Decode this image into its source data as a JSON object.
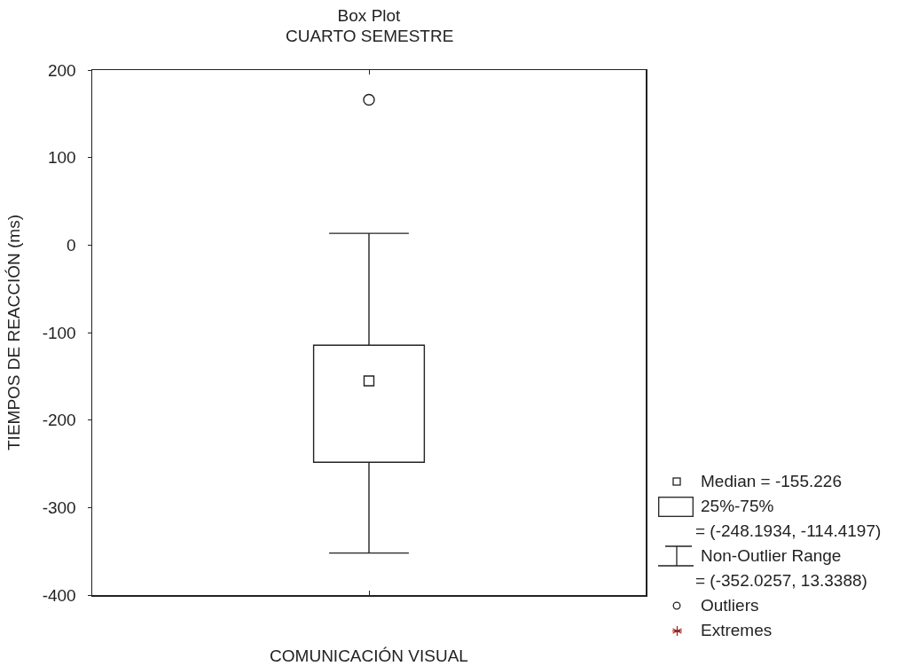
{
  "chart_data": {
    "type": "box",
    "title": "Box Plot",
    "subtitle": "CUARTO SEMESTRE",
    "xlabel": "COMUNICACIÓN VISUAL",
    "ylabel": "TIEMPOS DE REACCIÓN (ms)",
    "categories": [
      null
    ],
    "ylim": [
      -400,
      200
    ],
    "yticks": [
      -400,
      -300,
      -200,
      -100,
      0,
      100,
      200
    ],
    "boxes": [
      {
        "low": -352.0257,
        "q1": -248.1934,
        "median": -155.226,
        "q3": -114.4197,
        "high": 13.3388,
        "outliers": [
          166
        ]
      }
    ],
    "annotations": [
      "Median = -155.226",
      "25%-75%",
      "= (-248.1934, -114.4197)",
      "Non-Outlier Range",
      "= (-352.0257, 13.3388)",
      "Outliers",
      "Extremes"
    ]
  }
}
